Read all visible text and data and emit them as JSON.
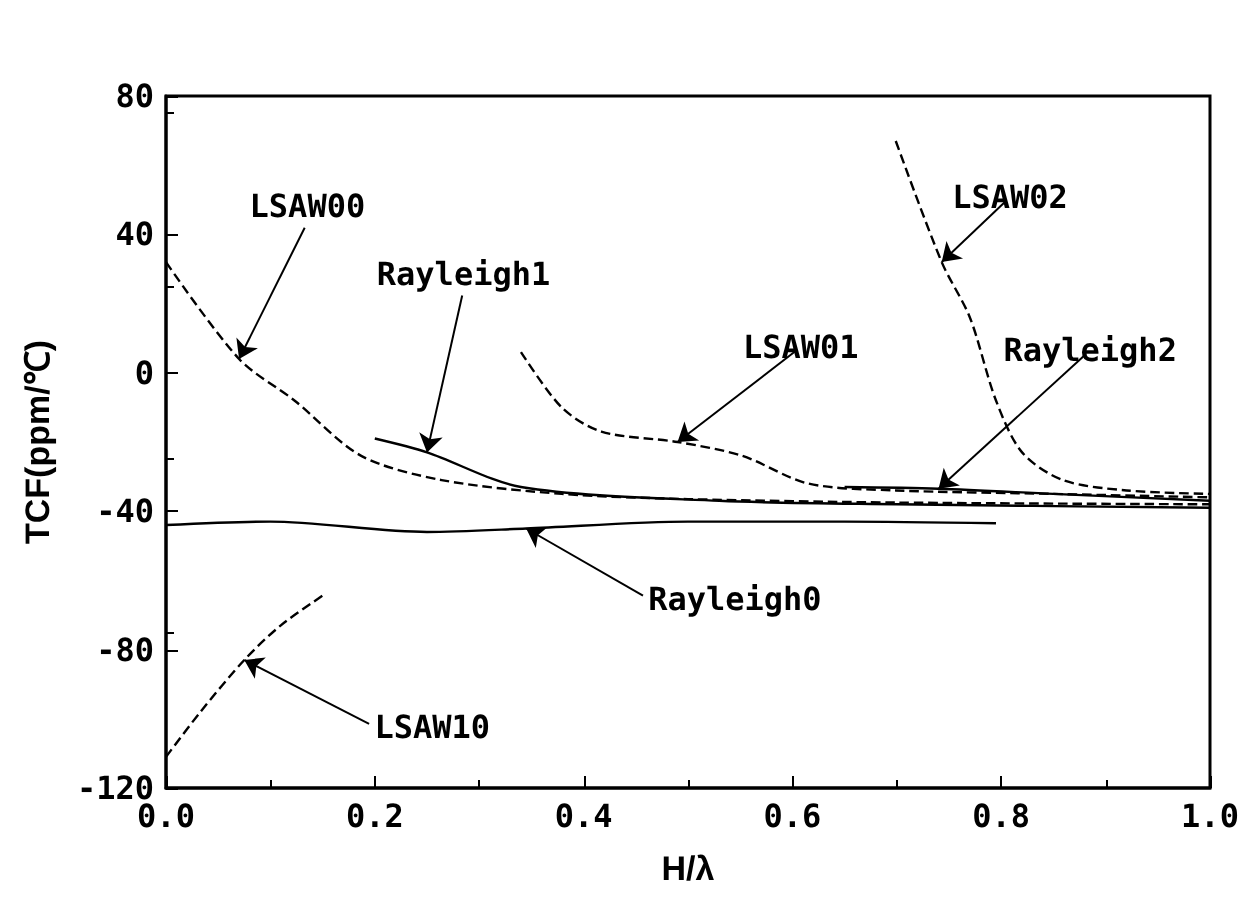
{
  "chart_data": {
    "type": "line",
    "xlabel": "H/λ",
    "ylabel": "TCF(ppm/℃)",
    "xlim": [
      0,
      1
    ],
    "ylim": [
      -120,
      80
    ],
    "xticks": [
      {
        "value": 0,
        "label": "0.0"
      },
      {
        "value": 0.2,
        "label": "0.2"
      },
      {
        "value": 0.4,
        "label": "0.4"
      },
      {
        "value": 0.6,
        "label": "0.6"
      },
      {
        "value": 0.8,
        "label": "0.8"
      },
      {
        "value": 1,
        "label": "1.0"
      }
    ],
    "yticks": [
      -120,
      -80,
      -40,
      0,
      40,
      80
    ],
    "grid": false,
    "legend": false,
    "marker": "none",
    "series": [
      {
        "name": "LSAW00",
        "color": "#000000",
        "line_style": "dashed",
        "x": [
          0,
          0.07,
          0.123,
          0.187,
          0.264,
          0.379,
          0.5,
          0.7,
          1.0
        ],
        "values": [
          32,
          4,
          -8,
          -24,
          -31,
          -35,
          -36.5,
          -37.5,
          -38
        ]
      },
      {
        "name": "Rayleigh1",
        "color": "#000000",
        "line_style": "solid",
        "x": [
          0.2,
          0.25,
          0.34,
          0.53,
          0.7,
          1.0
        ],
        "values": [
          -19,
          -23,
          -33,
          -37,
          -38,
          -39
        ]
      },
      {
        "name": "Rayleigh0",
        "color": "#000000",
        "line_style": "solid",
        "x": [
          0,
          0.1,
          0.25,
          0.345,
          0.5,
          0.65,
          0.795
        ],
        "values": [
          -44,
          -43,
          -46,
          -45,
          -43,
          -43,
          -43.5
        ]
      },
      {
        "name": "LSAW01",
        "color": "#000000",
        "line_style": "dashed",
        "x": [
          0.34,
          0.379,
          0.417,
          0.49,
          0.552,
          0.615,
          0.699,
          0.85,
          1.0
        ],
        "values": [
          6,
          -10,
          -17,
          -20,
          -24,
          -32,
          -34,
          -35,
          -36
        ]
      },
      {
        "name": "Rayleigh2",
        "color": "#000000",
        "line_style": "solid",
        "x": [
          0.65,
          0.74,
          0.85,
          1.0
        ],
        "values": [
          -33,
          -33.5,
          -35,
          -37
        ]
      },
      {
        "name": "LSAW02",
        "color": "#000000",
        "line_style": "dashed",
        "x": [
          0.699,
          0.743,
          0.77,
          0.795,
          0.82,
          0.859,
          0.92,
          1.0
        ],
        "values": [
          67,
          32,
          16,
          -8,
          -23,
          -31,
          -34,
          -35
        ]
      },
      {
        "name": "LSAW10",
        "color": "#000000",
        "line_style": "dashed",
        "x": [
          0,
          0.033,
          0.075,
          0.11,
          0.152
        ],
        "values": [
          -111,
          -98,
          -83,
          -73,
          -64
        ]
      }
    ]
  }
}
